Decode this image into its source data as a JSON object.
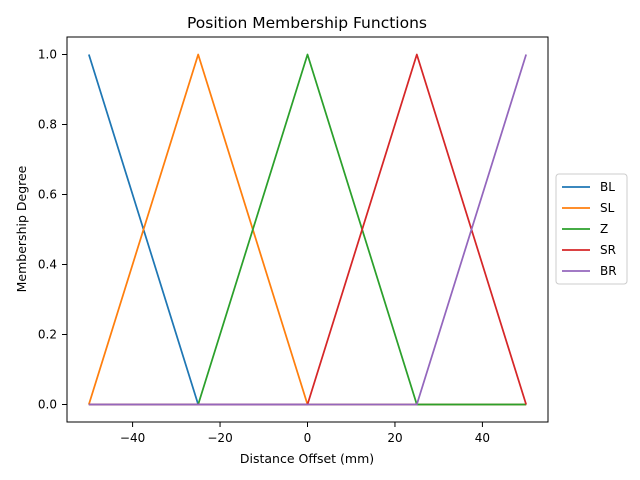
{
  "chart_data": {
    "type": "line",
    "title": "Position Membership Functions",
    "xlabel": "Distance Offset (mm)",
    "ylabel": "Membership Degree",
    "xlim": [
      -55,
      55
    ],
    "ylim": [
      -0.05,
      1.05
    ],
    "xticks": [
      -40,
      -20,
      0,
      20,
      40
    ],
    "xtick_labels": [
      "−40",
      "−20",
      "0",
      "20",
      "40"
    ],
    "yticks": [
      0.0,
      0.2,
      0.4,
      0.6,
      0.8,
      1.0
    ],
    "ytick_labels": [
      "0.0",
      "0.2",
      "0.4",
      "0.6",
      "0.8",
      "1.0"
    ],
    "grid": false,
    "legend_position": "center-right-outside",
    "series": [
      {
        "name": "BL",
        "color": "#1f77b4",
        "points": [
          [
            -50,
            1.0
          ],
          [
            -25,
            0.0
          ],
          [
            50,
            0.0
          ]
        ]
      },
      {
        "name": "SL",
        "color": "#ff7f0e",
        "points": [
          [
            -50,
            0.0
          ],
          [
            -25,
            1.0
          ],
          [
            0,
            0.0
          ],
          [
            50,
            0.0
          ]
        ]
      },
      {
        "name": "Z",
        "color": "#2ca02c",
        "points": [
          [
            -50,
            0.0
          ],
          [
            -25,
            0.0
          ],
          [
            0,
            1.0
          ],
          [
            25,
            0.0
          ],
          [
            50,
            0.0
          ]
        ]
      },
      {
        "name": "SR",
        "color": "#d62728",
        "points": [
          [
            -50,
            0.0
          ],
          [
            0,
            0.0
          ],
          [
            25,
            1.0
          ],
          [
            50,
            0.0
          ]
        ]
      },
      {
        "name": "BR",
        "color": "#9467bd",
        "points": [
          [
            -50,
            0.0
          ],
          [
            25,
            0.0
          ],
          [
            50,
            1.0
          ]
        ]
      }
    ]
  }
}
